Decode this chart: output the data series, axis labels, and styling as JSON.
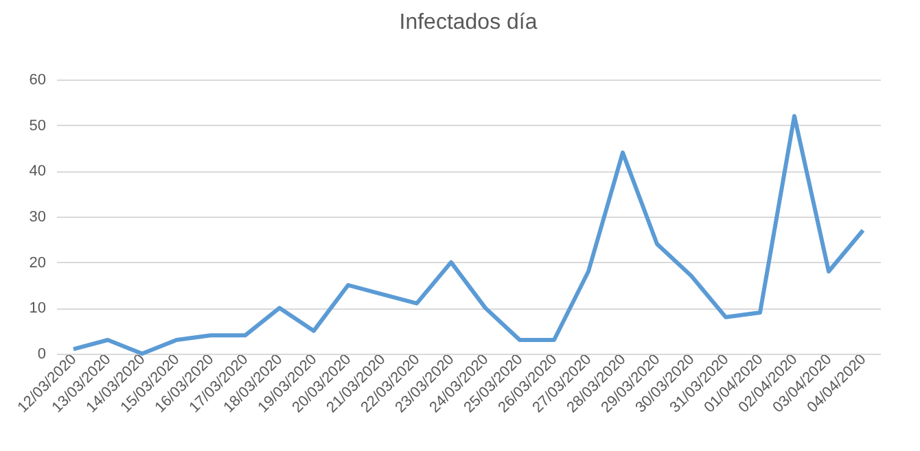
{
  "chart_data": {
    "type": "line",
    "title": "Infectados día",
    "categories": [
      "12/03/2020",
      "13/03/2020",
      "14/03/2020",
      "15/03/2020",
      "16/03/2020",
      "17/03/2020",
      "18/03/2020",
      "19/03/2020",
      "20/03/2020",
      "21/03/2020",
      "22/03/2020",
      "23/03/2020",
      "24/03/2020",
      "25/03/2020",
      "26/03/2020",
      "27/03/2020",
      "28/03/2020",
      "29/03/2020",
      "30/03/2020",
      "31/03/2020",
      "01/04/2020",
      "02/04/2020",
      "03/04/2020",
      "04/04/2020"
    ],
    "series": [
      {
        "color": "#5b9bd5",
        "values": [
          1,
          3,
          0,
          3,
          4,
          4,
          10,
          5,
          15,
          13,
          11,
          20,
          10,
          3,
          3,
          18,
          44,
          24,
          17,
          8,
          9,
          52,
          18,
          27
        ]
      }
    ],
    "ylim": [
      0,
      60
    ],
    "yticks": [
      0,
      10,
      20,
      30,
      40,
      50,
      60
    ],
    "grid": "y",
    "marker": "none",
    "line_style": "solid"
  }
}
